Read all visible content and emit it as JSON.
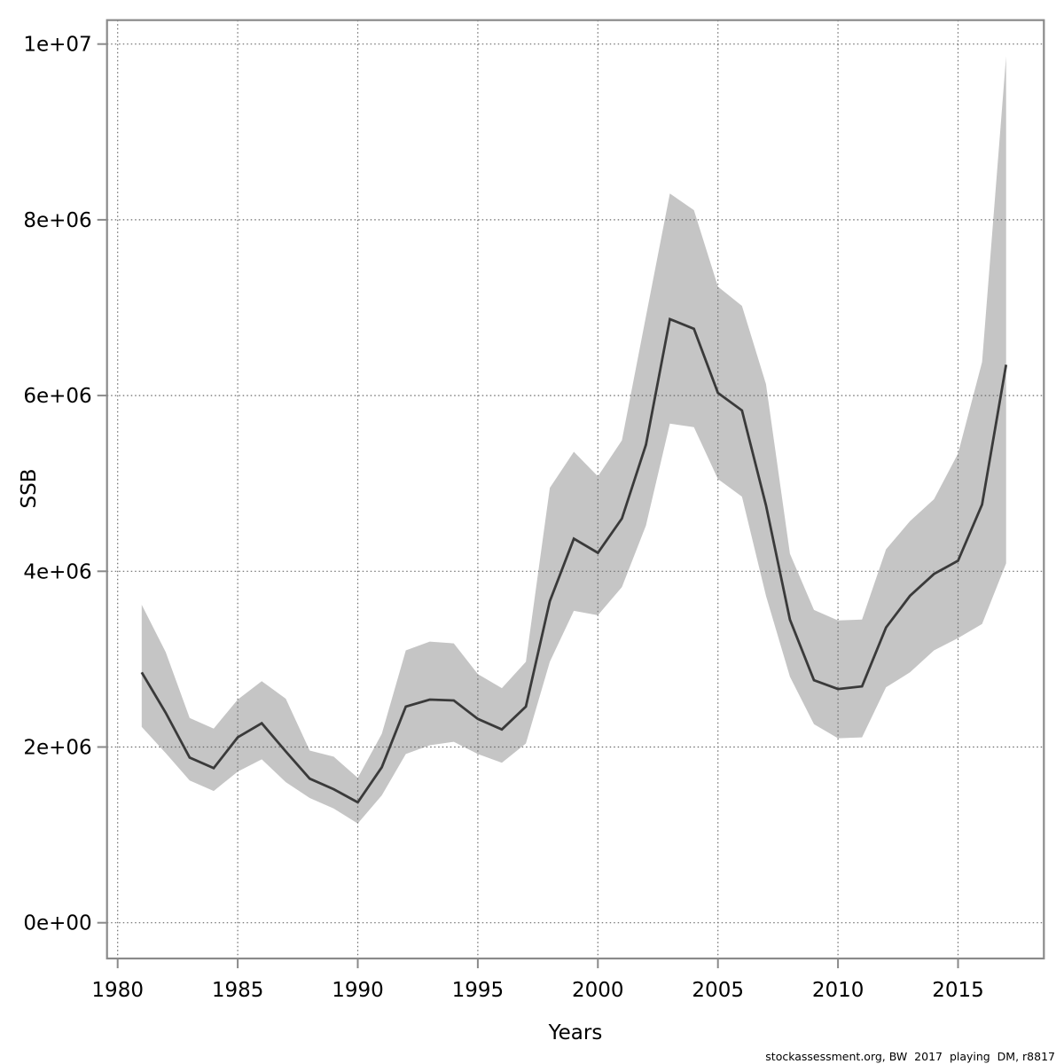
{
  "chart_data": {
    "type": "line",
    "title": "",
    "xlabel": "Years",
    "ylabel": "SSB",
    "footer": "stockassessment.org, BW  2017  playing  DM, r8817",
    "grid": true,
    "legend_position": "none",
    "xlim": [
      1979.6,
      2018.6
    ],
    "ylim": [
      -407000,
      10280000
    ],
    "x_ticks": {
      "values": [
        1980,
        1985,
        1990,
        1995,
        2000,
        2005,
        2010,
        2015
      ],
      "labels": [
        "1980",
        "1985",
        "1990",
        "1995",
        "2000",
        "2005",
        "2010",
        "2015"
      ]
    },
    "y_ticks": {
      "values": [
        0,
        2000000,
        4000000,
        6000000,
        8000000,
        10000000
      ],
      "labels": [
        "0e+00",
        "2e+06",
        "4e+06",
        "6e+06",
        "8e+06",
        "1e+07"
      ]
    },
    "x": [
      1981,
      1982,
      1983,
      1984,
      1985,
      1986,
      1987,
      1988,
      1989,
      1990,
      1991,
      1992,
      1993,
      1994,
      1995,
      1996,
      1997,
      1998,
      1999,
      2000,
      2001,
      2002,
      2003,
      2004,
      2005,
      2006,
      2007,
      2008,
      2009,
      2010,
      2011,
      2012,
      2013,
      2014,
      2015,
      2016,
      2017
    ],
    "series": [
      {
        "name": "SSB estimate",
        "values": [
          2850000,
          2390000,
          1880000,
          1760000,
          2110000,
          2270000,
          1950000,
          1640000,
          1520000,
          1370000,
          1770000,
          2460000,
          2540000,
          2530000,
          2320000,
          2200000,
          2460000,
          3660000,
          4370000,
          4210000,
          4600000,
          5440000,
          6870000,
          6760000,
          6030000,
          5830000,
          4750000,
          3450000,
          2760000,
          2660000,
          2690000,
          3360000,
          3720000,
          3970000,
          4120000,
          4760000,
          6350000
        ]
      },
      {
        "name": "confidence band lower",
        "values": [
          2230000,
          1930000,
          1620000,
          1500000,
          1720000,
          1860000,
          1600000,
          1420000,
          1300000,
          1130000,
          1450000,
          1920000,
          2020000,
          2060000,
          1920000,
          1820000,
          2040000,
          2970000,
          3550000,
          3500000,
          3820000,
          4520000,
          5680000,
          5640000,
          5050000,
          4850000,
          3720000,
          2800000,
          2260000,
          2100000,
          2110000,
          2680000,
          2850000,
          3100000,
          3240000,
          3400000,
          4090000
        ]
      },
      {
        "name": "confidence band upper",
        "values": [
          3620000,
          3080000,
          2330000,
          2210000,
          2540000,
          2750000,
          2550000,
          1960000,
          1890000,
          1650000,
          2150000,
          3100000,
          3200000,
          3180000,
          2830000,
          2670000,
          2970000,
          4950000,
          5360000,
          5080000,
          5490000,
          6900000,
          8300000,
          8110000,
          7240000,
          7020000,
          6130000,
          4200000,
          3560000,
          3440000,
          3450000,
          4250000,
          4570000,
          4820000,
          5340000,
          6380000,
          9860000
        ]
      }
    ],
    "colors": {
      "background": "#ffffff",
      "band": "#c5c5c5",
      "line": "#3a3a3a",
      "border": "#8a8a8a",
      "grid": "#6a6a6a",
      "text": "#000000"
    }
  }
}
